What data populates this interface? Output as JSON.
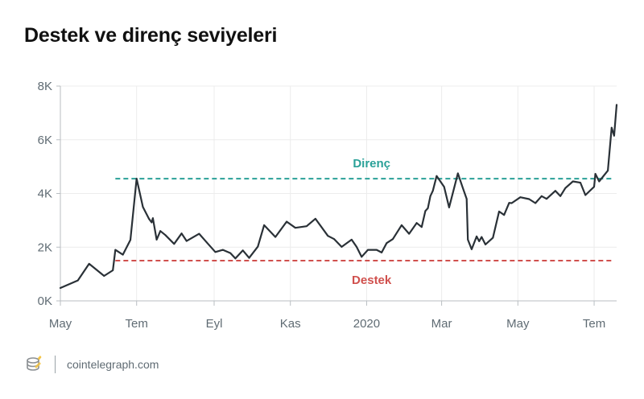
{
  "chart_data": {
    "type": "line",
    "title": "Destek ve direnç seviyeleri",
    "xlabel": "",
    "ylabel": "",
    "ylim": [
      0,
      8000
    ],
    "y_ticks": [
      {
        "value": 0,
        "label": "0K"
      },
      {
        "value": 2000,
        "label": "2K"
      },
      {
        "value": 4000,
        "label": "4K"
      },
      {
        "value": 6000,
        "label": "6K"
      },
      {
        "value": 8000,
        "label": "8K"
      }
    ],
    "x_ticks": [
      {
        "date": "2019-05-01",
        "label": "May"
      },
      {
        "date": "2019-07-01",
        "label": "Tem"
      },
      {
        "date": "2019-09-01",
        "label": "Eyl"
      },
      {
        "date": "2019-11-01",
        "label": "Kas"
      },
      {
        "date": "2020-01-01",
        "label": "2020"
      },
      {
        "date": "2020-03-01",
        "label": "Mar"
      },
      {
        "date": "2020-05-01",
        "label": "May"
      },
      {
        "date": "2020-07-01",
        "label": "Tem"
      }
    ],
    "xlim": [
      "2019-05-01",
      "2020-07-19"
    ],
    "grid": true,
    "series": [
      {
        "points": [
          [
            "2019-05-01",
            480
          ],
          [
            "2019-05-15",
            760
          ],
          [
            "2019-05-24",
            1380
          ],
          [
            "2019-06-05",
            930
          ],
          [
            "2019-06-12",
            1140
          ],
          [
            "2019-06-14",
            1900
          ],
          [
            "2019-06-20",
            1720
          ],
          [
            "2019-06-26",
            2270
          ],
          [
            "2019-07-01",
            4550
          ],
          [
            "2019-07-06",
            3500
          ],
          [
            "2019-07-11",
            3050
          ],
          [
            "2019-07-13",
            2920
          ],
          [
            "2019-07-14",
            3080
          ],
          [
            "2019-07-17",
            2280
          ],
          [
            "2019-07-20",
            2600
          ],
          [
            "2019-07-24",
            2450
          ],
          [
            "2019-07-31",
            2120
          ],
          [
            "2019-08-06",
            2510
          ],
          [
            "2019-08-10",
            2230
          ],
          [
            "2019-08-20",
            2500
          ],
          [
            "2019-08-26",
            2180
          ],
          [
            "2019-09-02",
            1820
          ],
          [
            "2019-09-08",
            1900
          ],
          [
            "2019-09-14",
            1780
          ],
          [
            "2019-09-18",
            1580
          ],
          [
            "2019-09-24",
            1880
          ],
          [
            "2019-09-29",
            1600
          ],
          [
            "2019-10-06",
            2020
          ],
          [
            "2019-10-11",
            2820
          ],
          [
            "2019-10-20",
            2380
          ],
          [
            "2019-10-29",
            2950
          ],
          [
            "2019-11-05",
            2720
          ],
          [
            "2019-11-14",
            2780
          ],
          [
            "2019-11-21",
            3060
          ],
          [
            "2019-12-01",
            2420
          ],
          [
            "2019-12-06",
            2300
          ],
          [
            "2019-12-12",
            2010
          ],
          [
            "2019-12-20",
            2280
          ],
          [
            "2019-12-24",
            2010
          ],
          [
            "2019-12-28",
            1640
          ],
          [
            "2020-01-02",
            1900
          ],
          [
            "2020-01-09",
            1900
          ],
          [
            "2020-01-13",
            1800
          ],
          [
            "2020-01-17",
            2150
          ],
          [
            "2020-01-22",
            2300
          ],
          [
            "2020-01-29",
            2820
          ],
          [
            "2020-02-04",
            2500
          ],
          [
            "2020-02-10",
            2900
          ],
          [
            "2020-02-14",
            2750
          ],
          [
            "2020-02-17",
            3350
          ],
          [
            "2020-02-19",
            3450
          ],
          [
            "2020-02-21",
            3900
          ],
          [
            "2020-02-23",
            4100
          ],
          [
            "2020-02-26",
            4650
          ],
          [
            "2020-03-03",
            4250
          ],
          [
            "2020-03-07",
            3480
          ],
          [
            "2020-03-11",
            4200
          ],
          [
            "2020-03-14",
            4750
          ],
          [
            "2020-03-18",
            4200
          ],
          [
            "2020-03-21",
            3800
          ],
          [
            "2020-03-22",
            2280
          ],
          [
            "2020-03-25",
            1920
          ],
          [
            "2020-03-29",
            2400
          ],
          [
            "2020-03-31",
            2220
          ],
          [
            "2020-04-02",
            2380
          ],
          [
            "2020-04-05",
            2100
          ],
          [
            "2020-04-11",
            2350
          ],
          [
            "2020-04-16",
            3330
          ],
          [
            "2020-04-20",
            3200
          ],
          [
            "2020-04-24",
            3650
          ],
          [
            "2020-04-26",
            3640
          ],
          [
            "2020-05-03",
            3860
          ],
          [
            "2020-05-10",
            3790
          ],
          [
            "2020-05-15",
            3640
          ],
          [
            "2020-05-20",
            3900
          ],
          [
            "2020-05-24",
            3800
          ],
          [
            "2020-05-31",
            4100
          ],
          [
            "2020-06-04",
            3900
          ],
          [
            "2020-06-08",
            4200
          ],
          [
            "2020-06-14",
            4450
          ],
          [
            "2020-06-20",
            4400
          ],
          [
            "2020-06-24",
            3940
          ],
          [
            "2020-07-01",
            4250
          ],
          [
            "2020-07-02",
            4730
          ],
          [
            "2020-07-05",
            4450
          ],
          [
            "2020-07-12",
            4850
          ],
          [
            "2020-07-15",
            6450
          ],
          [
            "2020-07-17",
            6150
          ],
          [
            "2020-07-19",
            7300
          ]
        ],
        "color": "#2a3137"
      }
    ],
    "annotations": [
      {
        "label": "Direnç",
        "value": 4550,
        "x_start": "2019-06-14",
        "x_end": "2020-07-19",
        "color": "#2aa198",
        "style": "dashed",
        "label_position": "above"
      },
      {
        "label": "Destek",
        "value": 1500,
        "x_start": "2019-06-14",
        "x_end": "2020-07-19",
        "color": "#d0504d",
        "style": "dashed",
        "label_position": "below"
      }
    ]
  },
  "footer": {
    "brand_text": "cointelegraph.com",
    "logo_icon": "cointelegraph-logo-icon"
  }
}
